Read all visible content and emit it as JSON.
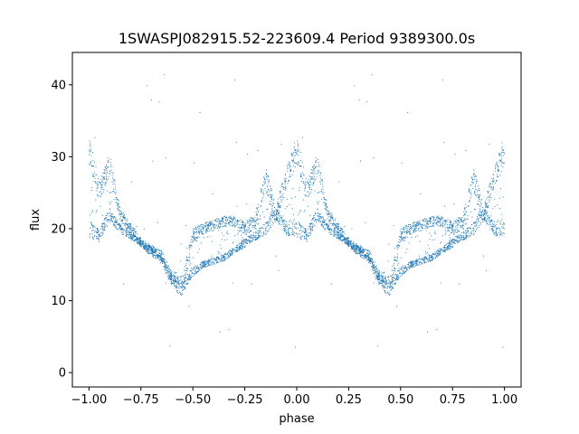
{
  "chart_data": {
    "type": "scatter",
    "title": "1SWASPJ082915.52-223609.4 Period 9389300.0s",
    "xlabel": "phase",
    "ylabel": "flux",
    "xlim": [
      -1.08,
      1.08
    ],
    "ylim": [
      -2,
      44.5
    ],
    "xticks": [
      -1.0,
      -0.75,
      -0.5,
      -0.25,
      0.0,
      0.25,
      0.5,
      0.75,
      1.0
    ],
    "xtick_labels": [
      "−1.00",
      "−0.75",
      "−0.50",
      "−0.25",
      "0.00",
      "0.25",
      "0.50",
      "0.75",
      "1.00"
    ],
    "yticks": [
      0,
      10,
      20,
      30,
      40
    ],
    "ytick_labels": [
      "0",
      "10",
      "20",
      "30",
      "40"
    ],
    "grid": false,
    "marker_color": "#1f77b4",
    "profile": {
      "phase": [
        0.0,
        0.05,
        0.1,
        0.15,
        0.2,
        0.25,
        0.3,
        0.35,
        0.4,
        0.45,
        0.5,
        0.55,
        0.6,
        0.65,
        0.7,
        0.75,
        0.8,
        0.85,
        0.9,
        0.95,
        1.0
      ],
      "upper": [
        31,
        25,
        29,
        22,
        20,
        18,
        17,
        16,
        13,
        12,
        19,
        20,
        20.5,
        21,
        21,
        20,
        21,
        27,
        22,
        27,
        31
      ],
      "lower": [
        20,
        19,
        22,
        20,
        19,
        18,
        17,
        16,
        13,
        12,
        14,
        15,
        15.5,
        16,
        17,
        18,
        19,
        20,
        22,
        20,
        20
      ],
      "spread": [
        4,
        3,
        3,
        2,
        1.5,
        1.5,
        1.5,
        2,
        2.5,
        3,
        2,
        1.5,
        1.5,
        1.5,
        1.5,
        2,
        2,
        3,
        3,
        3,
        4
      ]
    }
  }
}
